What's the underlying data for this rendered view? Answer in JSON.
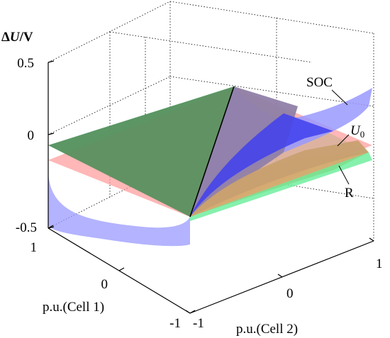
{
  "chart_data": {
    "type": "surface3d",
    "ylabel_parts": [
      "Δ",
      "U",
      "/V"
    ],
    "xlabel": "p.u.(Cell 1)",
    "zlabel": "p.u.(Cell 2)",
    "y_ticks": [
      "0.5",
      "0",
      "-0.5"
    ],
    "x_ticks": [
      "1",
      "0",
      "-1"
    ],
    "z_ticks": [
      "-1",
      "0",
      "1"
    ],
    "ylim": [
      -0.5,
      0.5
    ],
    "xlim": [
      -1,
      1
    ],
    "zlim": [
      -1,
      1
    ],
    "grid": true,
    "surfaces": [
      {
        "name": "SOC",
        "color": "#9999ff"
      },
      {
        "name": "U0",
        "label_main": "U",
        "label_sub": "0",
        "color": "#ff9999"
      },
      {
        "name": "R",
        "color": "#66ee99"
      }
    ],
    "annotations": [
      "SOC",
      "U",
      "0",
      "R"
    ]
  }
}
